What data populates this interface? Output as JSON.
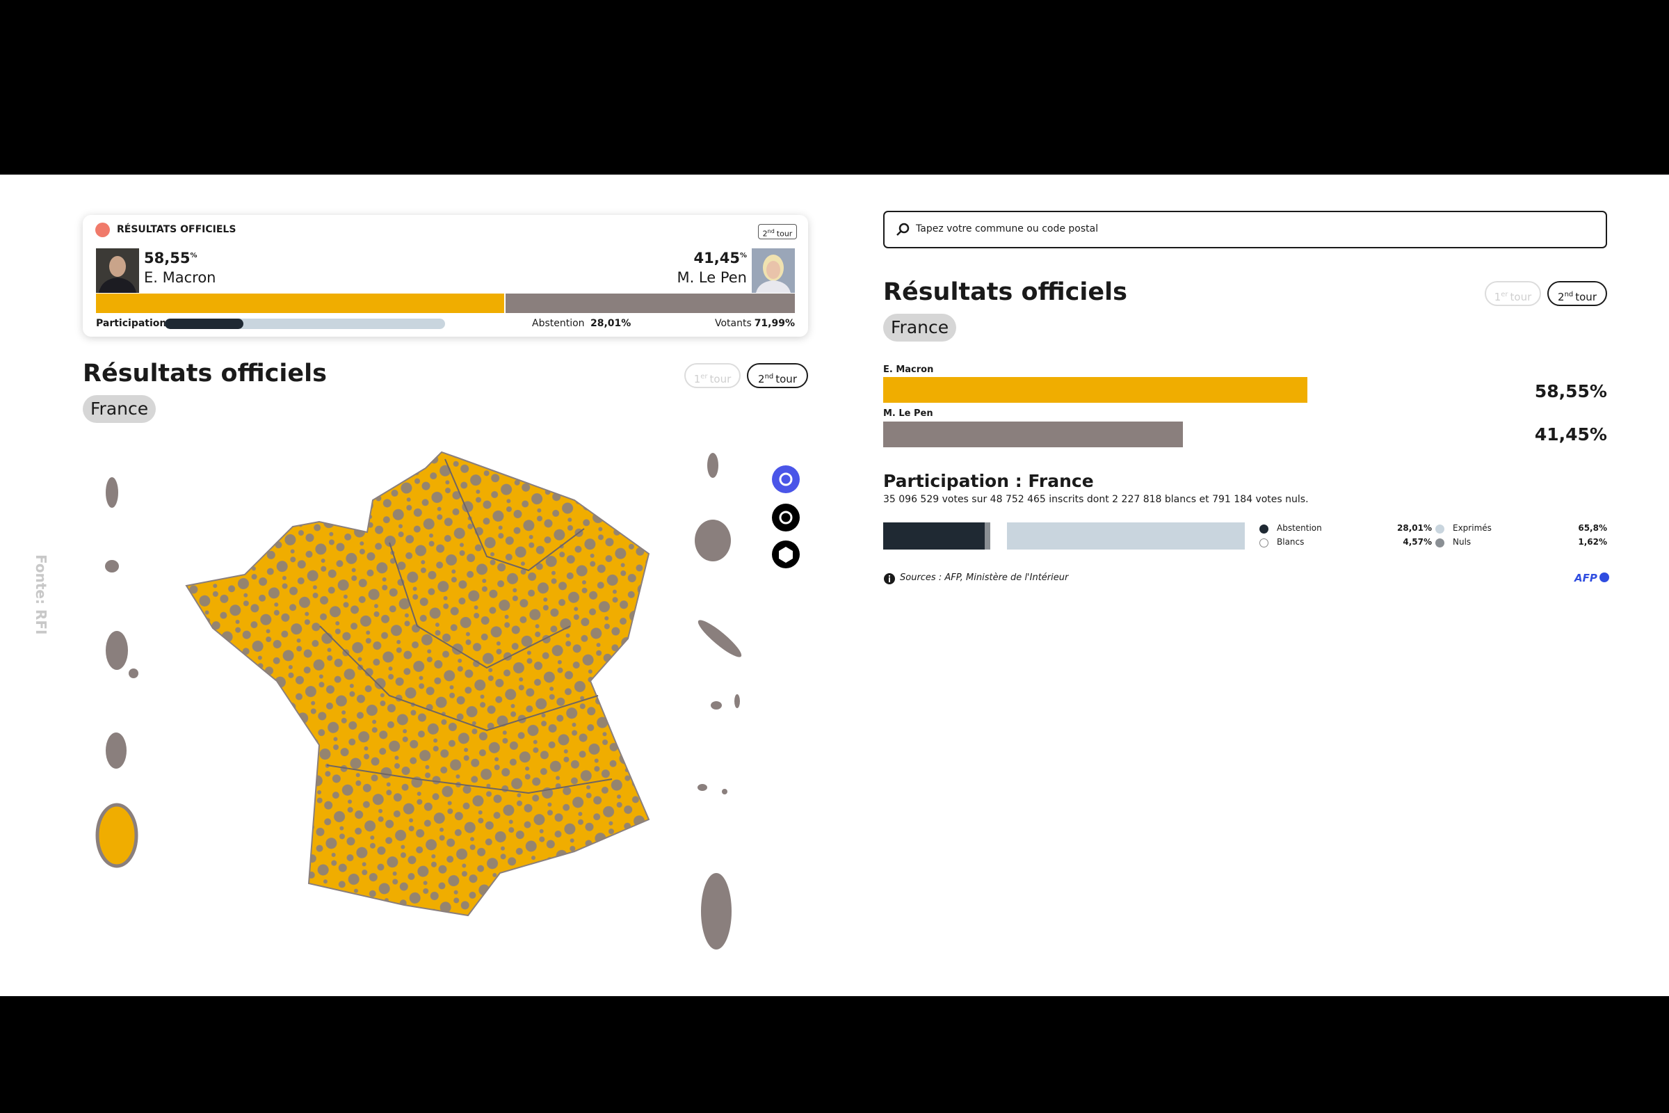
{
  "watermark": "Fonte: RFI",
  "summary_card": {
    "status": "RÉSULTATS OFFICIELS",
    "round": {
      "number": "2",
      "suffix": "nd",
      "word": "tour"
    },
    "candidates": [
      {
        "name": "E. Macron",
        "score": 58.55,
        "score_label": "58,55",
        "unit": "%",
        "color": "#f0ad00"
      },
      {
        "name": "M. Le Pen",
        "score": 41.45,
        "score_label": "41,45",
        "unit": "%",
        "color": "#8a7f7d"
      }
    ],
    "participation": {
      "label": "Participation",
      "abstention_title": "Abstention",
      "abstention": 28.01,
      "abstention_label": "28,01%",
      "votants_title": "Votants",
      "votants": 71.99,
      "votants_label": "71,99%"
    }
  },
  "map_panel": {
    "title": "Résultats officiels",
    "location": "France",
    "rounds": [
      {
        "number": "1",
        "suffix": "er",
        "word": "tour",
        "active": false
      },
      {
        "number": "2",
        "suffix": "nd",
        "word": "tour",
        "active": true
      }
    ]
  },
  "results_panel": {
    "search_placeholder": "Tapez votre commune ou code postal",
    "title": "Résultats officiels",
    "location": "France",
    "rounds": [
      {
        "number": "1",
        "suffix": "er",
        "word": "tour",
        "active": false
      },
      {
        "number": "2",
        "suffix": "nd",
        "word": "tour",
        "active": true
      }
    ],
    "candidates": [
      {
        "name": "E. Macron",
        "value": 58.55,
        "label": "58,55%",
        "color": "#f0ad00"
      },
      {
        "name": "M. Le Pen",
        "value": 41.45,
        "label": "41,45%",
        "color": "#8a7f7d"
      }
    ],
    "participation": {
      "title": "Participation : France",
      "description": "35 096 529 votes sur 48 752 465 inscrits dont 2 227 818 blancs et 791 184 votes nuls.",
      "segments": [
        {
          "name": "Abstention",
          "value": 28.01,
          "label": "28,01%",
          "color": "#1f2933"
        },
        {
          "name": "Nuls",
          "value": 1.62,
          "label": "1,62%",
          "color": "#8a8f94"
        },
        {
          "name": "Blancs",
          "value": 4.57,
          "label": "4,57%",
          "color": "#ffffff"
        },
        {
          "name": "Exprimés",
          "value": 65.8,
          "label": "65,8%",
          "color": "#c9d5de"
        }
      ]
    },
    "source": "Sources : AFP, Ministère de l'Intérieur",
    "logo": "AFP"
  }
}
